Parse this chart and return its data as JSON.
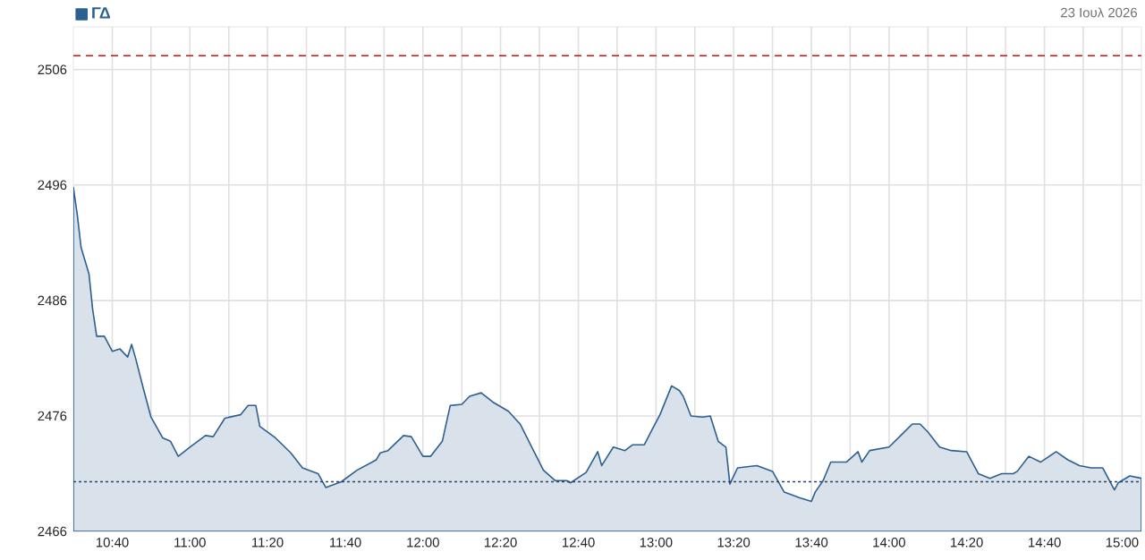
{
  "chart_data": {
    "type": "area",
    "subtitle": "23 Ιουλ 2026",
    "series": [
      {
        "name": "ΓΔ",
        "color": "#2d5f8f",
        "x": [
          10.5,
          10.517,
          10.533,
          10.567,
          10.583,
          10.6,
          10.633,
          10.667,
          10.7,
          10.733,
          10.75,
          10.767,
          10.8,
          10.833,
          10.883,
          10.917,
          10.95,
          11.0,
          11.067,
          11.1,
          11.15,
          11.217,
          11.25,
          11.283,
          11.3,
          11.367,
          11.433,
          11.483,
          11.55,
          11.583,
          11.65,
          11.717,
          11.8,
          11.817,
          11.85,
          11.917,
          11.95,
          12.0,
          12.033,
          12.083,
          12.117,
          12.167,
          12.2,
          12.25,
          12.3,
          12.367,
          12.417,
          12.467,
          12.517,
          12.567,
          12.617,
          12.633,
          12.7,
          12.75,
          12.767,
          12.817,
          12.867,
          12.9,
          12.95,
          12.983,
          13.017,
          13.067,
          13.1,
          13.117,
          13.15,
          13.2,
          13.233,
          13.267,
          13.3,
          13.317,
          13.35,
          13.433,
          13.5,
          13.55,
          13.617,
          13.667,
          13.683,
          13.717,
          13.75,
          13.817,
          13.867,
          13.883,
          13.917,
          14.0,
          14.05,
          14.1,
          14.133,
          14.167,
          14.217,
          14.267,
          14.333,
          14.383,
          14.433,
          14.483,
          14.533,
          14.55,
          14.6,
          14.65,
          14.717,
          14.767,
          14.817,
          14.867,
          14.917,
          14.967,
          14.983,
          15.033,
          15.083
        ],
        "values": [
          2495.8,
          2493.4,
          2490.6,
          2488.3,
          2485.2,
          2482.9,
          2482.9,
          2481.6,
          2481.8,
          2481.1,
          2482.2,
          2481.0,
          2478.4,
          2475.9,
          2474.1,
          2473.8,
          2472.5,
          2473.3,
          2474.3,
          2474.2,
          2475.8,
          2476.1,
          2476.9,
          2476.9,
          2475.1,
          2474.1,
          2472.8,
          2471.5,
          2471.0,
          2469.8,
          2470.3,
          2471.3,
          2472.2,
          2472.8,
          2473.0,
          2474.3,
          2474.2,
          2472.5,
          2472.5,
          2473.8,
          2476.9,
          2477.0,
          2477.7,
          2478.0,
          2477.2,
          2476.4,
          2475.3,
          2473.3,
          2471.3,
          2470.4,
          2470.4,
          2470.2,
          2471.1,
          2472.9,
          2471.7,
          2473.3,
          2473.0,
          2473.5,
          2473.5,
          2474.8,
          2476.1,
          2478.6,
          2478.2,
          2477.7,
          2476.0,
          2475.9,
          2476.0,
          2473.8,
          2473.3,
          2470.1,
          2471.5,
          2471.7,
          2471.2,
          2469.4,
          2468.9,
          2468.6,
          2469.4,
          2470.4,
          2472.0,
          2472.0,
          2472.9,
          2472.0,
          2473.0,
          2473.3,
          2474.3,
          2475.3,
          2475.3,
          2474.6,
          2473.3,
          2473.0,
          2472.9,
          2471.0,
          2470.6,
          2471.0,
          2471.0,
          2471.2,
          2472.5,
          2472.0,
          2472.9,
          2472.2,
          2471.7,
          2471.5,
          2471.5,
          2469.6,
          2470.2,
          2470.8,
          2470.6
        ]
      }
    ],
    "xlim": [
      10.5,
      15.083
    ],
    "xticks": [
      {
        "value": 10.667,
        "label": "10:40"
      },
      {
        "value": 10.833,
        "label": null
      },
      {
        "value": 11.0,
        "label": "11:00"
      },
      {
        "value": 11.167,
        "label": null
      },
      {
        "value": 11.333,
        "label": "11:20"
      },
      {
        "value": 11.5,
        "label": null
      },
      {
        "value": 11.667,
        "label": "11:40"
      },
      {
        "value": 11.833,
        "label": null
      },
      {
        "value": 12.0,
        "label": "12:00"
      },
      {
        "value": 12.167,
        "label": null
      },
      {
        "value": 12.333,
        "label": "12:20"
      },
      {
        "value": 12.5,
        "label": null
      },
      {
        "value": 12.667,
        "label": "12:40"
      },
      {
        "value": 12.833,
        "label": null
      },
      {
        "value": 13.0,
        "label": "13:00"
      },
      {
        "value": 13.167,
        "label": null
      },
      {
        "value": 13.333,
        "label": "13:20"
      },
      {
        "value": 13.5,
        "label": null
      },
      {
        "value": 13.667,
        "label": "13:40"
      },
      {
        "value": 13.833,
        "label": null
      },
      {
        "value": 14.0,
        "label": "14:00"
      },
      {
        "value": 14.167,
        "label": null
      },
      {
        "value": 14.333,
        "label": "14:20"
      },
      {
        "value": 14.5,
        "label": null
      },
      {
        "value": 14.667,
        "label": "14:40"
      },
      {
        "value": 14.833,
        "label": null
      },
      {
        "value": 15.0,
        "label": "15:00"
      }
    ],
    "ylim": [
      2466,
      2509.7
    ],
    "yticks": [
      2466,
      2476,
      2486,
      2496,
      2506
    ],
    "ref_lines": [
      {
        "axis": "y",
        "value": 2507.2,
        "color": "#cc1111",
        "line_style": "dashed"
      },
      {
        "axis": "y",
        "value": 2470.3,
        "color": "#24466e",
        "line_style": "dotted"
      }
    ],
    "grid": true,
    "legend": "top left"
  }
}
